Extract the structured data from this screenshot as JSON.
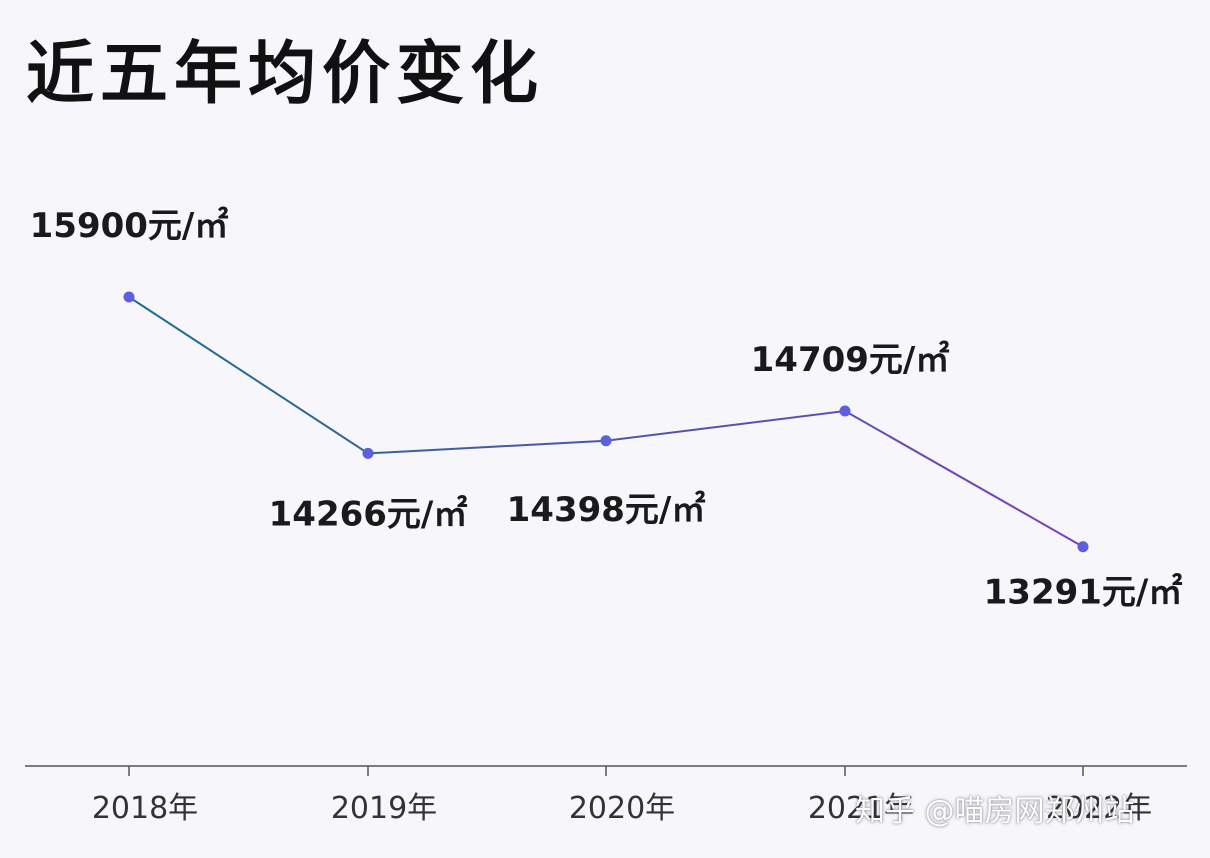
{
  "title": "近五年均价变化",
  "watermark": "知乎 @喵房网郑州站",
  "colors": {
    "line_start": "#1d6f8f",
    "line_end": "#7a3fc0",
    "marker": "#5b5fe0",
    "axis": "#555555"
  },
  "chart_data": {
    "type": "line",
    "title": "近五年均价变化",
    "xlabel": "",
    "ylabel": "",
    "categories": [
      "2018年",
      "2019年",
      "2020年",
      "2021年",
      "2022年"
    ],
    "values": [
      15900,
      14266,
      14398,
      14709,
      13291
    ],
    "data_labels": [
      "15900元/㎡",
      "14266元/㎡",
      "14398元/㎡",
      "14709元/㎡",
      "13291元/㎡"
    ],
    "ylim": [
      11000,
      16600
    ],
    "grid": false,
    "legend": "none"
  }
}
